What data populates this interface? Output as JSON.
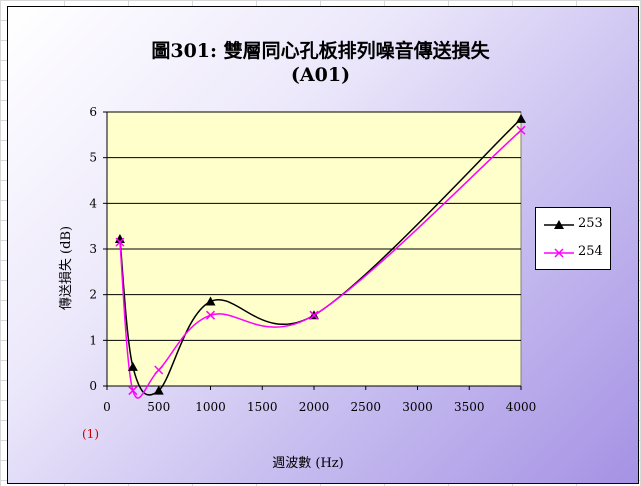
{
  "chart_data": {
    "type": "line",
    "title": "圖301: 雙層同心孔板排列噪音傳送損失",
    "subtitle": "(A01)",
    "xlabel": "週波數 (Hz)",
    "ylabel": "傳送損失 (dB)",
    "xlim": [
      0,
      4000
    ],
    "ylim": [
      0,
      6
    ],
    "x_ticks": [
      "0",
      "500",
      "1000",
      "1500",
      "2000",
      "2500",
      "3000",
      "3500",
      "4000"
    ],
    "y_ticks": [
      "0",
      "1",
      "2",
      "3",
      "4",
      "5",
      "6"
    ],
    "grid": "horizontal",
    "legend_position": "right",
    "footnote": "(1)",
    "series": [
      {
        "name": "253",
        "color": "#000000",
        "marker": "triangle",
        "x": [
          125,
          250,
          500,
          1000,
          2000,
          4000
        ],
        "y": [
          3.22,
          0.42,
          -0.1,
          1.85,
          1.55,
          5.85
        ]
      },
      {
        "name": "254",
        "color": "#ff00ff",
        "marker": "x",
        "x": [
          125,
          250,
          500,
          1000,
          2000,
          4000
        ],
        "y": [
          3.15,
          -0.1,
          0.35,
          1.55,
          1.55,
          5.6
        ]
      }
    ]
  }
}
